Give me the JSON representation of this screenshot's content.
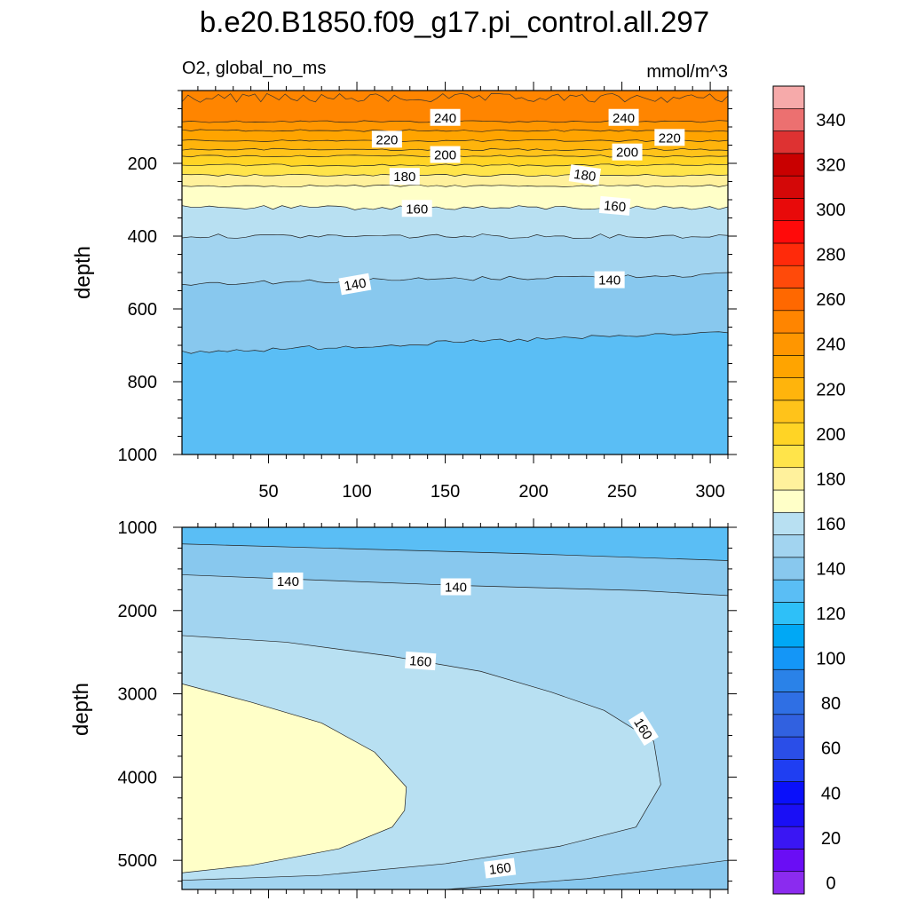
{
  "chart_data": {
    "type": "contour",
    "title": "b.e20.B1850.f09_g17.pi_control.all.297",
    "subtitle_left": "O2, global_no_ms",
    "subtitle_right": "mmol/m^3",
    "colorbar": {
      "levels": [
        0,
        10,
        20,
        30,
        40,
        50,
        60,
        70,
        80,
        90,
        100,
        110,
        120,
        130,
        140,
        150,
        160,
        170,
        180,
        190,
        200,
        210,
        220,
        230,
        240,
        250,
        260,
        270,
        280,
        290,
        300,
        310,
        320,
        330,
        340,
        350
      ],
      "tick_labels": [
        "0",
        "20",
        "40",
        "60",
        "80",
        "100",
        "120",
        "140",
        "160",
        "180",
        "200",
        "220",
        "240",
        "260",
        "280",
        "300",
        "320",
        "340"
      ],
      "tick_values": [
        0,
        20,
        40,
        60,
        80,
        100,
        120,
        140,
        160,
        180,
        200,
        220,
        240,
        260,
        280,
        300,
        320,
        340
      ],
      "colors": [
        "#8b2bef",
        "#6a0df5",
        "#3a16f3",
        "#1a0ff5",
        "#0a10fa",
        "#1f3ef2",
        "#2a4ee8",
        "#3161e0",
        "#2f6fe4",
        "#2a82e8",
        "#1496f7",
        "#00a8f5",
        "#2ec0f8",
        "#5abef5",
        "#88c8ee",
        "#a2d4f0",
        "#b8e0f2",
        "#ffffc8",
        "#fff19c",
        "#ffe44a",
        "#ffd425",
        "#ffc31a",
        "#ffb40c",
        "#ffa400",
        "#ff9600",
        "#ff8500",
        "#ff6800",
        "#ff4a0a",
        "#ff2a0a",
        "#ff0a0a",
        "#e80a0a",
        "#d40808",
        "#c90000",
        "#de3232",
        "#ec7070",
        "#f6aaaa"
      ]
    },
    "panels": [
      {
        "name": "upper",
        "ylabel": "depth",
        "xlim": [
          1,
          310
        ],
        "ylim": [
          1000,
          0
        ],
        "x_ticks": [
          50,
          100,
          150,
          200,
          250,
          300
        ],
        "x_tick_labels": [
          "50",
          "100",
          "150",
          "200",
          "250",
          "300"
        ],
        "y_ticks": [
          200,
          400,
          600,
          800,
          1000
        ],
        "y_tick_labels": [
          "200",
          "400",
          "600",
          "800",
          "1000"
        ],
        "bands": [
          {
            "level": 250,
            "top_depth": 0
          },
          {
            "level": 240,
            "top_depth": 85
          },
          {
            "level": 230,
            "top_depth": 110
          },
          {
            "level": 220,
            "top_depth": 138
          },
          {
            "level": 210,
            "top_depth": 162
          },
          {
            "level": 200,
            "top_depth": 180
          },
          {
            "level": 190,
            "top_depth": 205
          },
          {
            "level": 180,
            "top_depth": 233
          },
          {
            "level": 170,
            "top_depth": 262
          },
          {
            "level": 160,
            "top_depth": 322
          },
          {
            "level": 150,
            "top_depth": 400
          },
          {
            "level": 140,
            "top_depth": 530
          },
          {
            "level": 130,
            "top_depth": 720
          }
        ],
        "contour_labels": [
          {
            "text": "240",
            "x": 150,
            "depth": 75,
            "angle": 0
          },
          {
            "text": "240",
            "x": 251,
            "depth": 75,
            "angle": 0
          },
          {
            "text": "220",
            "x": 117,
            "depth": 135,
            "angle": 0
          },
          {
            "text": "220",
            "x": 277,
            "depth": 130,
            "angle": 0
          },
          {
            "text": "200",
            "x": 150,
            "depth": 177,
            "angle": 0
          },
          {
            "text": "200",
            "x": 253,
            "depth": 170,
            "angle": 0
          },
          {
            "text": "180",
            "x": 127,
            "depth": 237,
            "angle": 0
          },
          {
            "text": "180",
            "x": 229,
            "depth": 233,
            "angle": 8
          },
          {
            "text": "160",
            "x": 134,
            "depth": 325,
            "angle": 0
          },
          {
            "text": "160",
            "x": 246,
            "depth": 318,
            "angle": 5
          },
          {
            "text": "140",
            "x": 99,
            "depth": 533,
            "angle": -10
          },
          {
            "text": "140",
            "x": 243,
            "depth": 521,
            "angle": 0
          }
        ]
      },
      {
        "name": "lower",
        "ylabel": "depth",
        "xlim": [
          1,
          310
        ],
        "ylim": [
          5350,
          1000
        ],
        "x_ticks": [
          50,
          100,
          150,
          200,
          250,
          300
        ],
        "x_tick_labels": [
          "",
          "",
          "",
          "",
          "",
          ""
        ],
        "y_ticks": [
          1000,
          2000,
          3000,
          4000,
          5000
        ],
        "y_tick_labels": [
          "1000",
          "2000",
          "3000",
          "4000",
          "5000"
        ],
        "contour_labels": [
          {
            "text": "140",
            "x": 61,
            "depth": 1650,
            "angle": 0
          },
          {
            "text": "140",
            "x": 156,
            "depth": 1720,
            "angle": 0
          },
          {
            "text": "160",
            "x": 136,
            "depth": 2610,
            "angle": 4
          },
          {
            "text": "160",
            "x": 262,
            "depth": 3420,
            "angle": 58
          },
          {
            "text": "160",
            "x": 181,
            "depth": 5100,
            "angle": -7
          }
        ]
      }
    ]
  }
}
